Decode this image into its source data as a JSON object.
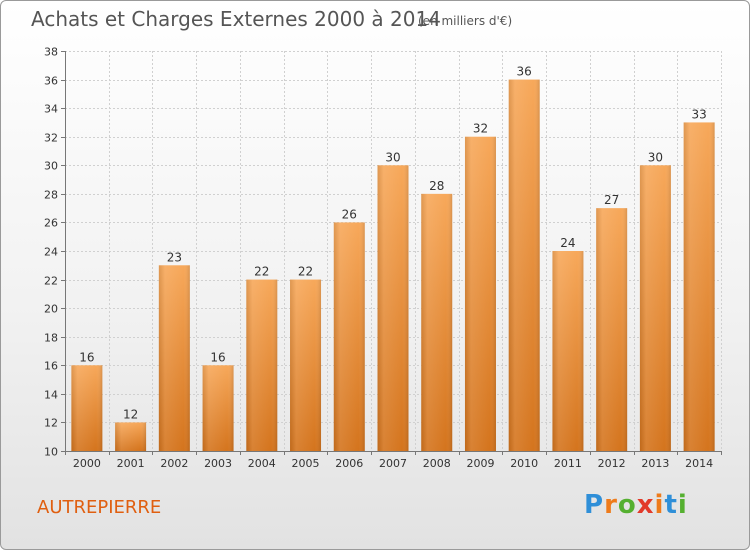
{
  "title": "Achats et Charges Externes 2000 à 2014",
  "unit_note": "(en milliers d'€)",
  "commune": "AUTREPIERRE",
  "logo": {
    "text": "Proxiti",
    "letter_colors": [
      "#2f8fd8",
      "#ee7b1b",
      "#55b030",
      "#e23a2a",
      "#ee7b1b",
      "#2f8fd8",
      "#55b030"
    ]
  },
  "colors": {
    "bar_top": "#f7a85a",
    "bar_bottom": "#d4741d",
    "commune": "#e05f10"
  },
  "chart_data": {
    "type": "bar",
    "categories": [
      "2000",
      "2001",
      "2002",
      "2003",
      "2004",
      "2005",
      "2006",
      "2007",
      "2008",
      "2009",
      "2010",
      "2011",
      "2012",
      "2013",
      "2014"
    ],
    "values": [
      16,
      12,
      23,
      16,
      22,
      22,
      26,
      30,
      28,
      32,
      36,
      24,
      27,
      30,
      33
    ],
    "yticks": [
      10,
      12,
      14,
      16,
      18,
      20,
      22,
      24,
      26,
      28,
      30,
      32,
      34,
      36,
      38
    ],
    "ylim": [
      10,
      38
    ],
    "grid": true
  }
}
